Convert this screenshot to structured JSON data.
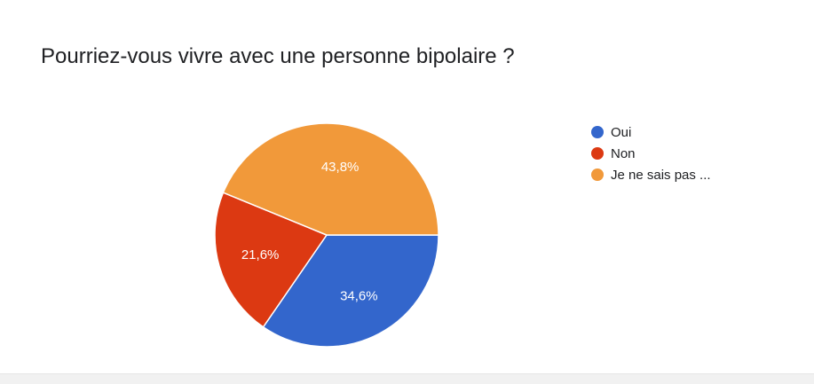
{
  "chart_data": {
    "type": "pie",
    "title": "Pourriez-vous vivre avec une personne bipolaire ?",
    "slices": [
      {
        "label": "Oui",
        "value": 34.6,
        "display": "34,6%",
        "color": "#3366cc"
      },
      {
        "label": "Non",
        "value": 21.6,
        "display": "21,6%",
        "color": "#dc3912"
      },
      {
        "label": "Je ne sais pas ...",
        "value": 43.8,
        "display": "43,8%",
        "color": "#f1993a"
      }
    ],
    "legend_position": "right"
  }
}
